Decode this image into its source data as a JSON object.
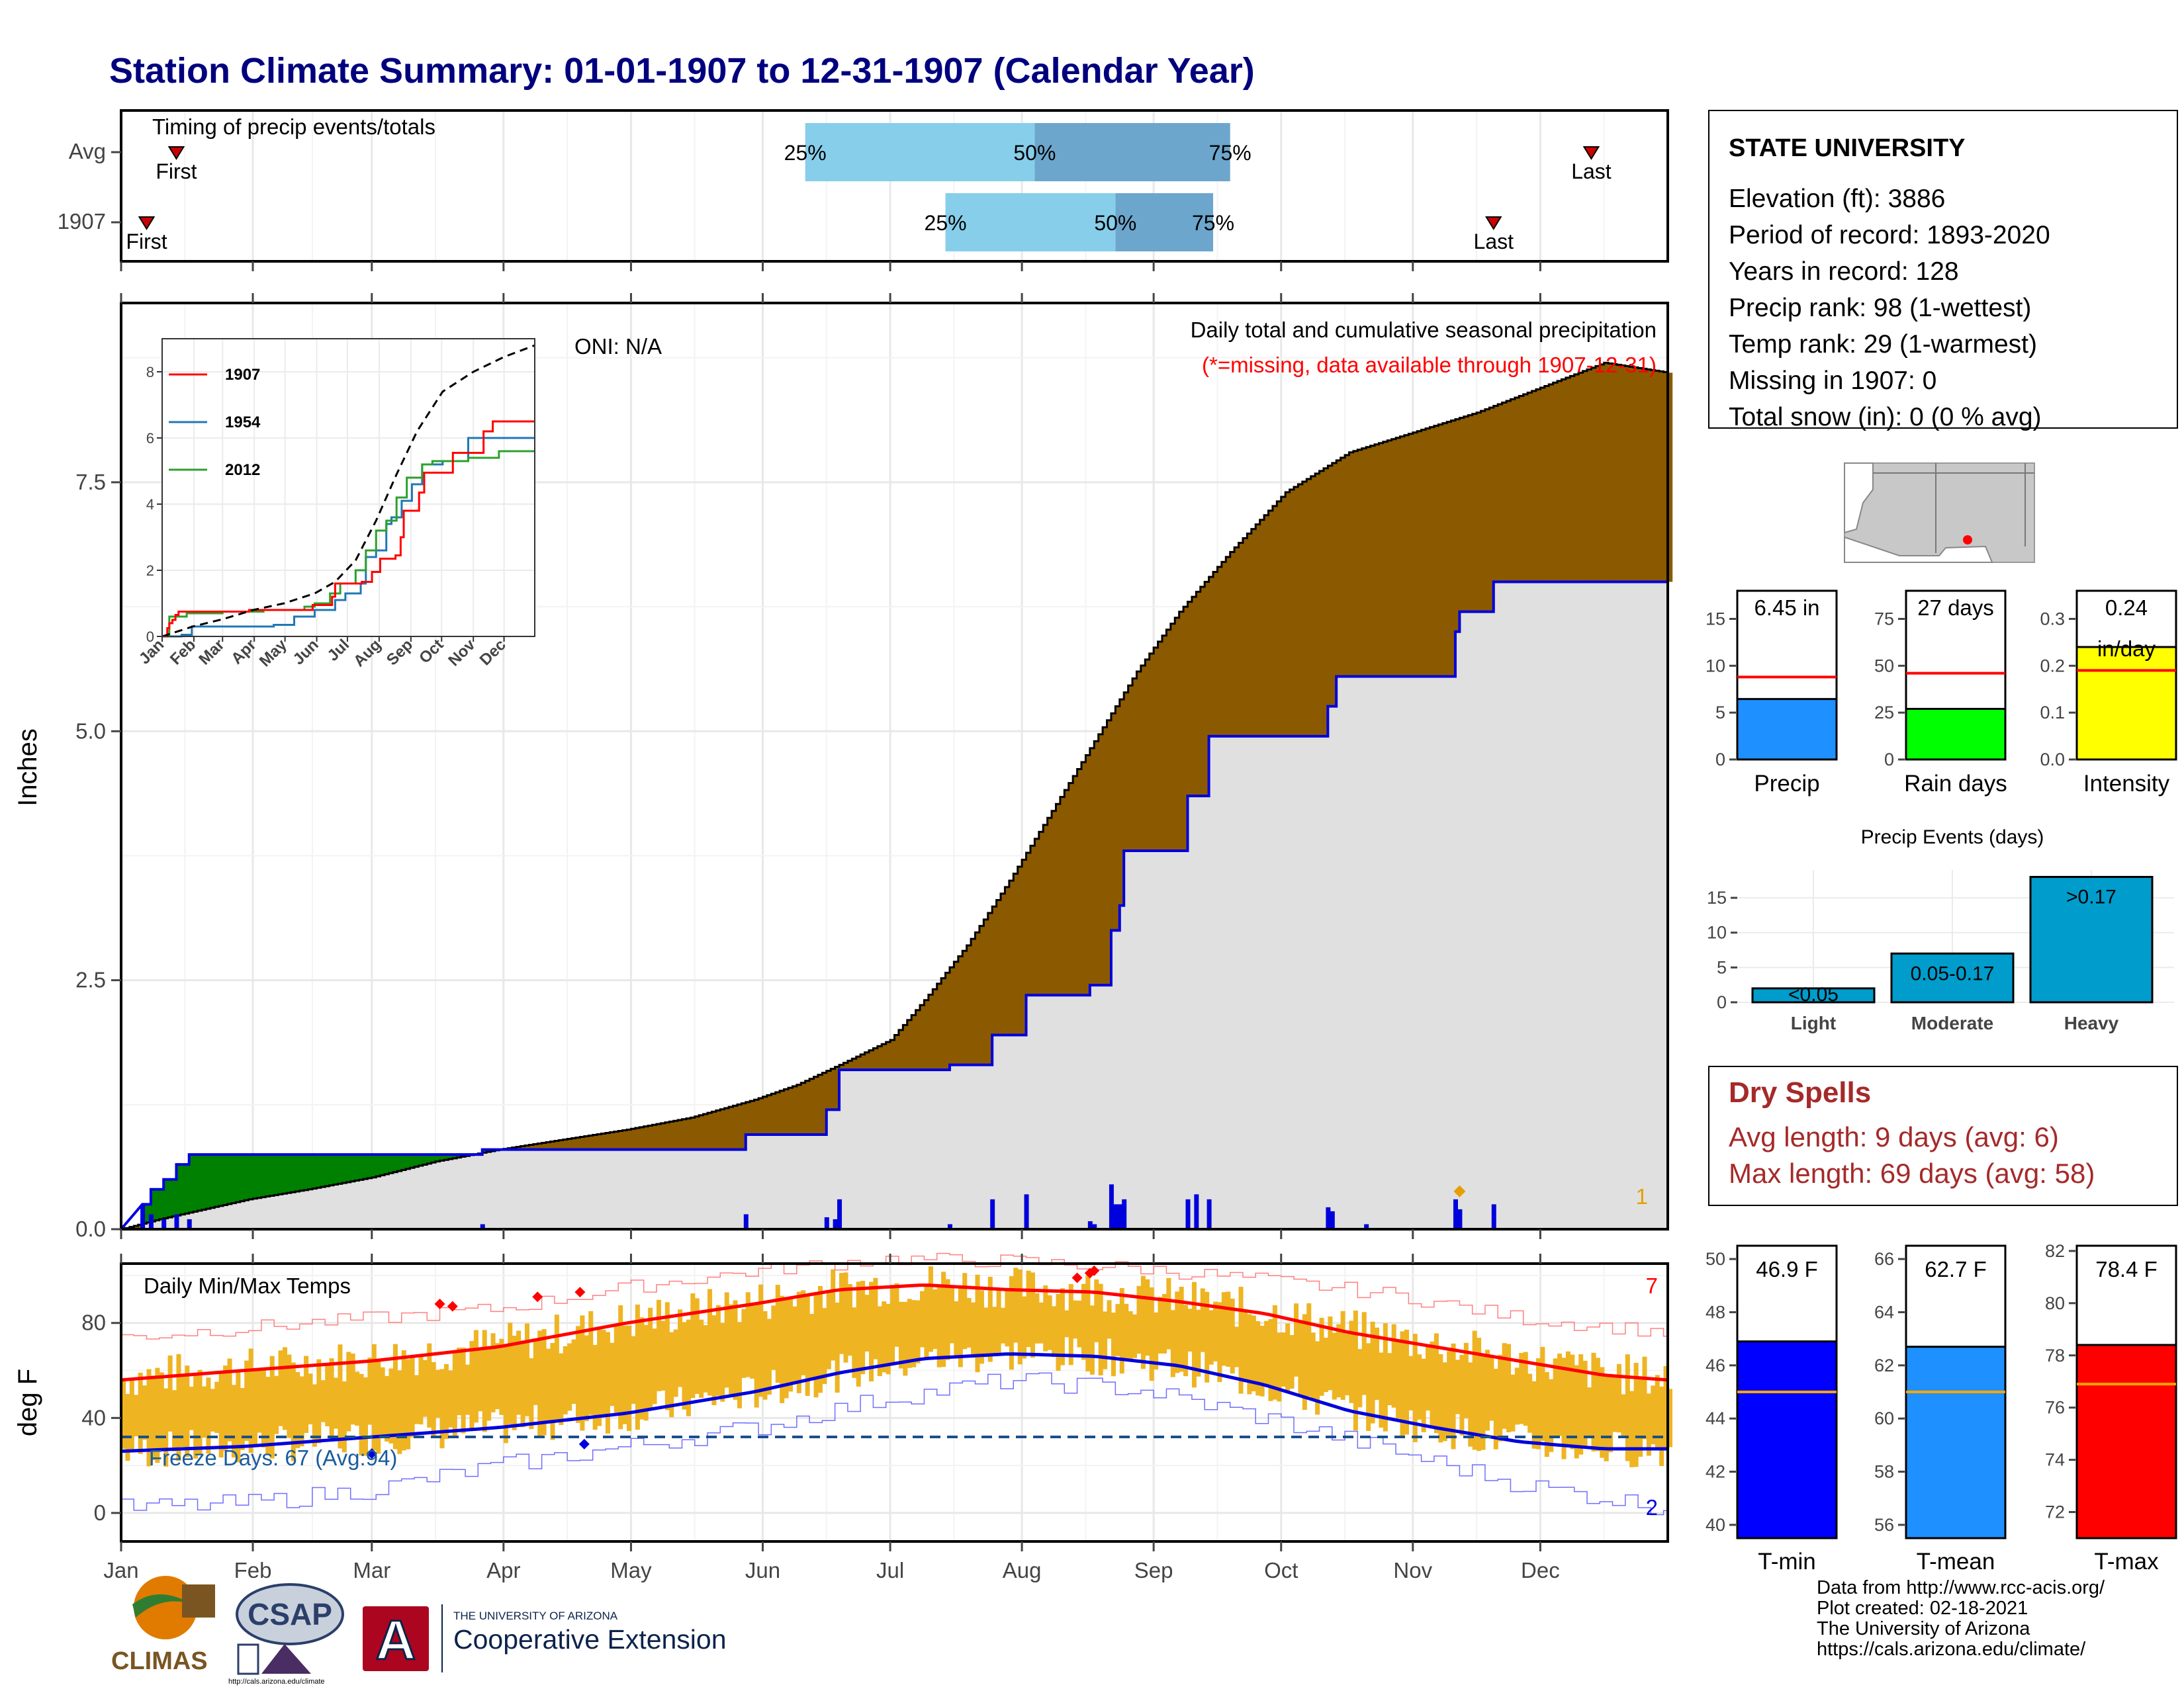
{
  "title": "Station Climate Summary: 01-01-1907 to 12-31-1907 (Calendar Year)",
  "colors": {
    "title": "#00007f",
    "accum_fill": "#8b5a00",
    "deficit_fill": "#008000",
    "avg_fill": "#e0e0e0",
    "precip_line": "#0000dd",
    "temp_bar": "#eeb422",
    "tmax_line": "#ff0000",
    "tmin_line": "#0000dd",
    "dry_spells": "#a52a2a",
    "timing_light": "#87ceeb",
    "timing_dark": "#6ca6cd"
  },
  "months": [
    "Jan",
    "Feb",
    "Mar",
    "Apr",
    "May",
    "Jun",
    "Jul",
    "Aug",
    "Sep",
    "Oct",
    "Nov",
    "Dec"
  ],
  "timing": {
    "title": "Timing of precip events/totals",
    "rows": [
      {
        "label": "Avg",
        "first_day": 14,
        "last_day": 347,
        "p25_day": 162,
        "p50_day": 216,
        "p75_day": 262,
        "p25": "25%",
        "p50": "50%",
        "p75": "75%",
        "first": "First",
        "last": "Last"
      },
      {
        "label": "1907",
        "first_day": 7,
        "last_day": 324,
        "p25_day": 195,
        "p50_day": 235,
        "p75_day": 258,
        "p25": "25%",
        "p50": "50%",
        "p75": "75%",
        "first": "First",
        "last": "Last"
      }
    ]
  },
  "precip_panel": {
    "title": "Daily total and cumulative seasonal precipitation",
    "subtitle": "(*=missing, data available through 1907-12-31)",
    "oni": "ONI: N/A",
    "ylabel": "Inches",
    "ylim": [
      0,
      9.3
    ],
    "yticks": [
      0.0,
      2.5,
      5.0,
      7.5
    ],
    "ytick_labels": [
      "0.0",
      "2.5",
      "5.0",
      "7.5"
    ],
    "marker_count": "1",
    "avg_cumulative": [
      [
        1,
        0
      ],
      [
        10,
        0.1
      ],
      [
        31,
        0.3
      ],
      [
        45,
        0.4
      ],
      [
        60,
        0.52
      ],
      [
        75,
        0.68
      ],
      [
        90,
        0.8
      ],
      [
        105,
        0.9
      ],
      [
        120,
        1.0
      ],
      [
        135,
        1.12
      ],
      [
        150,
        1.3
      ],
      [
        160,
        1.45
      ],
      [
        170,
        1.65
      ],
      [
        182,
        1.9
      ],
      [
        190,
        2.3
      ],
      [
        200,
        2.85
      ],
      [
        210,
        3.5
      ],
      [
        220,
        4.2
      ],
      [
        230,
        4.9
      ],
      [
        240,
        5.6
      ],
      [
        250,
        6.2
      ],
      [
        262,
        6.8
      ],
      [
        275,
        7.4
      ],
      [
        290,
        7.8
      ],
      [
        305,
        8.0
      ],
      [
        320,
        8.2
      ],
      [
        335,
        8.45
      ],
      [
        350,
        8.7
      ],
      [
        365,
        8.6
      ]
    ],
    "cum_1907": [
      [
        1,
        0
      ],
      [
        6,
        0.25
      ],
      [
        8,
        0.25
      ],
      [
        8,
        0.4
      ],
      [
        11,
        0.4
      ],
      [
        11,
        0.5
      ],
      [
        14,
        0.5
      ],
      [
        14,
        0.65
      ],
      [
        17,
        0.65
      ],
      [
        17,
        0.75
      ],
      [
        86,
        0.75
      ],
      [
        86,
        0.8
      ],
      [
        148,
        0.8
      ],
      [
        148,
        0.95
      ],
      [
        167,
        0.95
      ],
      [
        167,
        1.2
      ],
      [
        170,
        1.2
      ],
      [
        170,
        1.6
      ],
      [
        196,
        1.6
      ],
      [
        196,
        1.65
      ],
      [
        206,
        1.65
      ],
      [
        206,
        1.95
      ],
      [
        214,
        1.95
      ],
      [
        214,
        2.35
      ],
      [
        229,
        2.35
      ],
      [
        229,
        2.45
      ],
      [
        234,
        2.45
      ],
      [
        234,
        3.0
      ],
      [
        236,
        3.0
      ],
      [
        236,
        3.25
      ],
      [
        237,
        3.25
      ],
      [
        237,
        3.8
      ],
      [
        252,
        3.8
      ],
      [
        252,
        3.9
      ],
      [
        252,
        4.35
      ],
      [
        257,
        4.35
      ],
      [
        257,
        4.95
      ],
      [
        285,
        4.95
      ],
      [
        285,
        5.25
      ],
      [
        287,
        5.25
      ],
      [
        287,
        5.55
      ],
      [
        315,
        5.55
      ],
      [
        315,
        6.0
      ],
      [
        316,
        6.0
      ],
      [
        316,
        6.2
      ],
      [
        324,
        6.2
      ],
      [
        324,
        6.5
      ],
      [
        365,
        6.5
      ]
    ],
    "daily_bars": [
      [
        6,
        0.25
      ],
      [
        8,
        0.15
      ],
      [
        11,
        0.1
      ],
      [
        14,
        0.15
      ],
      [
        17,
        0.1
      ],
      [
        86,
        0.05
      ],
      [
        148,
        0.15
      ],
      [
        167,
        0.12
      ],
      [
        169,
        0.1
      ],
      [
        170,
        0.3
      ],
      [
        196,
        0.05
      ],
      [
        206,
        0.3
      ],
      [
        214,
        0.35
      ],
      [
        229,
        0.08
      ],
      [
        230,
        0.05
      ],
      [
        234,
        0.45
      ],
      [
        235,
        0.25
      ],
      [
        236,
        0.25
      ],
      [
        237,
        0.3
      ],
      [
        252,
        0.3
      ],
      [
        254,
        0.35
      ],
      [
        257,
        0.3
      ],
      [
        285,
        0.22
      ],
      [
        286,
        0.18
      ],
      [
        294,
        0.05
      ],
      [
        315,
        0.3
      ],
      [
        316,
        0.2
      ],
      [
        324,
        0.25
      ]
    ],
    "missing_markers": [
      [
        316,
        0.38
      ]
    ]
  },
  "inset": {
    "yticks": [
      0,
      2,
      4,
      6,
      8
    ],
    "ytick_labels": [
      "0",
      "2",
      "4",
      "6",
      "8"
    ],
    "month_labels": [
      "Jan",
      "Feb",
      "Mar",
      "Apr",
      "May",
      "Jun",
      "Jul",
      "Aug",
      "Sep",
      "Oct",
      "Nov",
      "Dec"
    ],
    "legend": [
      {
        "name": "1907",
        "color": "#ff0000"
      },
      {
        "name": "1954",
        "color": "#1f78b4"
      },
      {
        "name": "2012",
        "color": "#2ca02c"
      }
    ],
    "avg": [
      [
        1,
        0
      ],
      [
        31,
        0.3
      ],
      [
        60,
        0.52
      ],
      [
        90,
        0.8
      ],
      [
        120,
        1.0
      ],
      [
        150,
        1.3
      ],
      [
        170,
        1.65
      ],
      [
        190,
        2.3
      ],
      [
        210,
        3.5
      ],
      [
        230,
        4.9
      ],
      [
        250,
        6.2
      ],
      [
        275,
        7.4
      ],
      [
        305,
        8.0
      ],
      [
        335,
        8.45
      ],
      [
        365,
        8.8
      ]
    ],
    "series_1907": [
      [
        1,
        0
      ],
      [
        6,
        0.25
      ],
      [
        8,
        0.4
      ],
      [
        11,
        0.5
      ],
      [
        14,
        0.65
      ],
      [
        17,
        0.75
      ],
      [
        86,
        0.8
      ],
      [
        148,
        0.95
      ],
      [
        167,
        1.2
      ],
      [
        170,
        1.6
      ],
      [
        196,
        1.65
      ],
      [
        206,
        1.95
      ],
      [
        214,
        2.35
      ],
      [
        229,
        2.45
      ],
      [
        234,
        3.0
      ],
      [
        237,
        3.8
      ],
      [
        252,
        4.35
      ],
      [
        257,
        4.95
      ],
      [
        285,
        5.55
      ],
      [
        315,
        6.2
      ],
      [
        324,
        6.5
      ],
      [
        365,
        6.5
      ]
    ],
    "series_1954": [
      [
        1,
        0
      ],
      [
        20,
        0.05
      ],
      [
        30,
        0.3
      ],
      [
        80,
        0.3
      ],
      [
        110,
        0.35
      ],
      [
        130,
        0.6
      ],
      [
        150,
        0.8
      ],
      [
        170,
        1.1
      ],
      [
        180,
        1.3
      ],
      [
        195,
        1.6
      ],
      [
        200,
        2.4
      ],
      [
        210,
        2.6
      ],
      [
        220,
        3.4
      ],
      [
        225,
        3.6
      ],
      [
        235,
        4.1
      ],
      [
        245,
        4.6
      ],
      [
        255,
        5.2
      ],
      [
        275,
        5.3
      ],
      [
        300,
        6.0
      ],
      [
        365,
        6.0
      ]
    ],
    "series_2012": [
      [
        1,
        0
      ],
      [
        8,
        0.6
      ],
      [
        25,
        0.7
      ],
      [
        60,
        0.75
      ],
      [
        100,
        0.8
      ],
      [
        140,
        0.9
      ],
      [
        150,
        1.0
      ],
      [
        165,
        1.3
      ],
      [
        175,
        1.6
      ],
      [
        190,
        2.0
      ],
      [
        200,
        2.6
      ],
      [
        210,
        3.2
      ],
      [
        220,
        3.5
      ],
      [
        230,
        4.2
      ],
      [
        240,
        4.8
      ],
      [
        255,
        5.2
      ],
      [
        265,
        5.3
      ],
      [
        300,
        5.4
      ],
      [
        330,
        5.6
      ],
      [
        365,
        5.6
      ]
    ]
  },
  "temp_panel": {
    "title": "Daily Min/Max Temps",
    "ylabel": "deg F",
    "ylim": [
      -12,
      105
    ],
    "yticks": [
      0,
      40,
      80
    ],
    "ytick_labels": [
      "0",
      "40",
      "80"
    ],
    "freeze_text": "Freeze Days: 67 (Avg:94)",
    "freeze_line": 32,
    "count_top": "7",
    "count_bottom": "2",
    "avg_tmax": [
      [
        1,
        56
      ],
      [
        30,
        60
      ],
      [
        60,
        64
      ],
      [
        90,
        70
      ],
      [
        120,
        80
      ],
      [
        150,
        88
      ],
      [
        170,
        94
      ],
      [
        190,
        96
      ],
      [
        210,
        94
      ],
      [
        230,
        93
      ],
      [
        250,
        89
      ],
      [
        270,
        84
      ],
      [
        290,
        76
      ],
      [
        310,
        70
      ],
      [
        330,
        64
      ],
      [
        350,
        58
      ],
      [
        365,
        56
      ]
    ],
    "avg_tmin": [
      [
        1,
        26
      ],
      [
        30,
        28
      ],
      [
        60,
        32
      ],
      [
        90,
        36
      ],
      [
        120,
        42
      ],
      [
        150,
        51
      ],
      [
        170,
        59
      ],
      [
        190,
        65
      ],
      [
        210,
        67
      ],
      [
        230,
        66
      ],
      [
        250,
        62
      ],
      [
        270,
        54
      ],
      [
        290,
        43
      ],
      [
        310,
        36
      ],
      [
        330,
        30
      ],
      [
        350,
        27
      ],
      [
        365,
        27
      ]
    ],
    "record_max": [
      [
        1,
        74
      ],
      [
        30,
        78
      ],
      [
        60,
        82
      ],
      [
        90,
        86
      ],
      [
        120,
        95
      ],
      [
        150,
        102
      ],
      [
        180,
        107
      ],
      [
        210,
        106
      ],
      [
        240,
        103
      ],
      [
        270,
        98
      ],
      [
        300,
        92
      ],
      [
        330,
        82
      ],
      [
        365,
        76
      ]
    ],
    "record_min": [
      [
        1,
        2
      ],
      [
        30,
        4
      ],
      [
        60,
        10
      ],
      [
        90,
        20
      ],
      [
        120,
        28
      ],
      [
        150,
        36
      ],
      [
        180,
        48
      ],
      [
        210,
        56
      ],
      [
        240,
        52
      ],
      [
        270,
        40
      ],
      [
        300,
        26
      ],
      [
        330,
        12
      ],
      [
        365,
        2
      ]
    ],
    "record_hi_marks": [
      [
        76,
        88
      ],
      [
        79,
        87
      ],
      [
        99,
        91
      ],
      [
        109,
        93
      ],
      [
        226,
        99
      ],
      [
        229,
        101
      ],
      [
        230,
        102
      ]
    ],
    "record_lo_marks": [
      [
        110,
        29
      ],
      [
        60,
        25
      ]
    ]
  },
  "station": {
    "name": "STATE UNIVERSITY",
    "lines": [
      "Elevation (ft): 3886",
      "Period of record: 1893-2020",
      "Years in record: 128",
      "Precip rank: 98 (1-wettest)",
      "Temp rank: 29 (1-warmest)",
      "Missing in 1907: 0",
      "Total snow (in): 0 (0 % avg)"
    ]
  },
  "mini_bars": [
    {
      "label": "Precip",
      "value": 6.45,
      "value_text": "6.45 in",
      "avg": 8.8,
      "ylim": [
        0,
        18
      ],
      "yticks": [
        0,
        5,
        10,
        15
      ],
      "ytick_labels": [
        "0",
        "5",
        "10",
        "15"
      ],
      "color": "#1e90ff"
    },
    {
      "label": "Rain days",
      "value": 27,
      "value_text": "27 days",
      "avg": 46,
      "ylim": [
        0,
        90
      ],
      "yticks": [
        0,
        25,
        50,
        75
      ],
      "ytick_labels": [
        "0",
        "25",
        "50",
        "75"
      ],
      "color": "#00ff00"
    },
    {
      "label": "Intensity",
      "value": 0.24,
      "value_text": "0.24",
      "value_text2": "in/day",
      "avg": 0.19,
      "ylim": [
        0,
        0.36
      ],
      "yticks": [
        0.0,
        0.1,
        0.2,
        0.3
      ],
      "ytick_labels": [
        "0.0",
        "0.1",
        "0.2",
        "0.3"
      ],
      "color": "#ffff00"
    }
  ],
  "events": {
    "title": "Precip Events (days)",
    "categories": [
      "Light",
      "Moderate",
      "Heavy"
    ],
    "values": [
      2,
      7,
      18
    ],
    "bar_labels": [
      "<0.05",
      "0.05-0.17",
      ">0.17"
    ],
    "ylim": [
      0,
      19
    ],
    "yticks": [
      0,
      5,
      10,
      15
    ],
    "ytick_labels": [
      "0",
      "5",
      "10",
      "15"
    ],
    "color": "#009ccc"
  },
  "dry_spells": {
    "title": "Dry Spells",
    "avg_length": "Avg length: 9 days (avg: 6)",
    "max_length": "Max length: 69 days (avg: 58)"
  },
  "temp_bars": [
    {
      "label": "T-min",
      "value": 46.9,
      "value_text": "46.9 F",
      "avg": 45.0,
      "ylim": [
        39.5,
        50.5
      ],
      "yticks": [
        40,
        42,
        44,
        46,
        48,
        50
      ],
      "ytick_labels": [
        "40",
        "42",
        "44",
        "46",
        "48",
        "50"
      ],
      "color": "#0000ff"
    },
    {
      "label": "T-mean",
      "value": 62.7,
      "value_text": "62.7 F",
      "avg": 61.0,
      "ylim": [
        55.5,
        66.5
      ],
      "yticks": [
        56,
        58,
        60,
        62,
        64,
        66
      ],
      "ytick_labels": [
        "56",
        "58",
        "60",
        "62",
        "64",
        "66"
      ],
      "color": "#1e90ff"
    },
    {
      "label": "T-max",
      "value": 78.4,
      "value_text": "78.4 F",
      "avg": 76.9,
      "ylim": [
        71.0,
        82.2
      ],
      "yticks": [
        72,
        74,
        76,
        78,
        80,
        82
      ],
      "ytick_labels": [
        "72",
        "74",
        "76",
        "78",
        "80",
        "82"
      ],
      "color": "#ff0000"
    }
  ],
  "logos": {
    "climas": "CLIMAS",
    "csap": "CSAP",
    "csap_url": "http://cals.arizona.edu/climate",
    "ua_line1": "THE UNIVERSITY OF ARIZONA",
    "ua_line2": "Cooperative Extension",
    "ua_letter": "A"
  },
  "footer": [
    "Data from http://www.rcc-acis.org/",
    "Plot created: 02-18-2021",
    "The University of Arizona",
    "https://cals.arizona.edu/climate/"
  ]
}
